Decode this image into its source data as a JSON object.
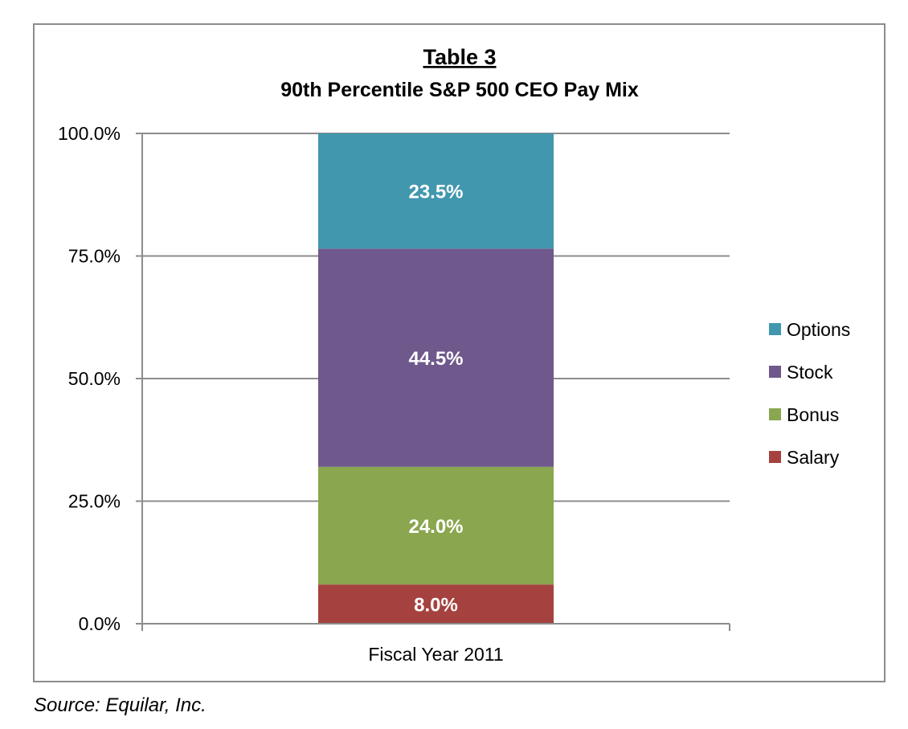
{
  "chart_data": {
    "type": "bar",
    "stacked": true,
    "title": "Table 3",
    "subtitle": "90th Percentile S&P 500 CEO Pay Mix",
    "categories": [
      "Fiscal Year 2011"
    ],
    "ylim": [
      0,
      100
    ],
    "yticks": [
      "0.0%",
      "25.0%",
      "50.0%",
      "75.0%",
      "100.0%"
    ],
    "ytick_values": [
      0,
      25,
      50,
      75,
      100
    ],
    "grid": true,
    "legend_position": "right",
    "series": [
      {
        "name": "Salary",
        "values": [
          8.0
        ],
        "label": "8.0%",
        "color": "#a5423f"
      },
      {
        "name": "Bonus",
        "values": [
          24.0
        ],
        "label": "24.0%",
        "color": "#8aa64e"
      },
      {
        "name": "Stock",
        "values": [
          44.5
        ],
        "label": "44.5%",
        "color": "#6f588c"
      },
      {
        "name": "Options",
        "values": [
          23.5
        ],
        "label": "23.5%",
        "color": "#4197ae"
      }
    ]
  },
  "source": "Source:  Equilar, Inc."
}
